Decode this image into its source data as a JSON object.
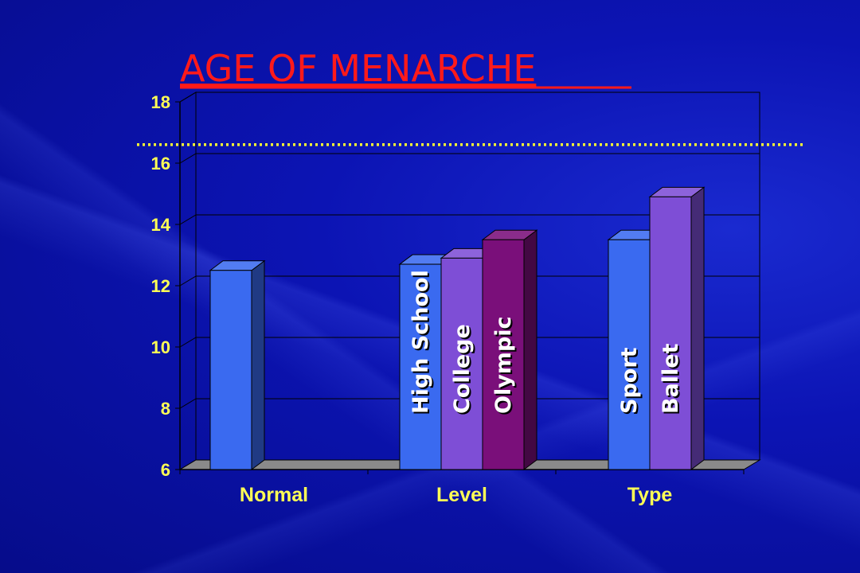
{
  "chart_data": {
    "type": "bar",
    "title": "AGE OF MENARCHE",
    "xlabel": "",
    "ylabel": "",
    "ylim": [
      6,
      18
    ],
    "yticks": [
      "6",
      "8",
      "10",
      "12",
      "14",
      "16",
      "18"
    ],
    "categories": [
      "Normal",
      "Level",
      "Type"
    ],
    "groups": [
      {
        "category": "Normal",
        "bars": [
          {
            "label": "",
            "value": 12.5,
            "color": "#3a6af0"
          }
        ]
      },
      {
        "category": "Level",
        "bars": [
          {
            "label": "High School",
            "value": 12.7,
            "color": "#3a6af0"
          },
          {
            "label": "College",
            "value": 12.9,
            "color": "#7e4ed6"
          },
          {
            "label": "Olympic",
            "value": 13.5,
            "color": "#7a0f7a"
          }
        ]
      },
      {
        "category": "Type",
        "bars": [
          {
            "label": "Sport",
            "value": 13.5,
            "color": "#3a6af0"
          },
          {
            "label": "Ballet",
            "value": 14.9,
            "color": "#7e4ed6"
          }
        ]
      }
    ],
    "reference_line": {
      "value": 16.5,
      "color": "#ffff33",
      "style": "dotted"
    },
    "grid": true
  },
  "colors": {
    "background": "#0a12a8",
    "title": "#ff1a1a",
    "axis_text": "#ffff55",
    "bar_text": "#ffffff"
  }
}
